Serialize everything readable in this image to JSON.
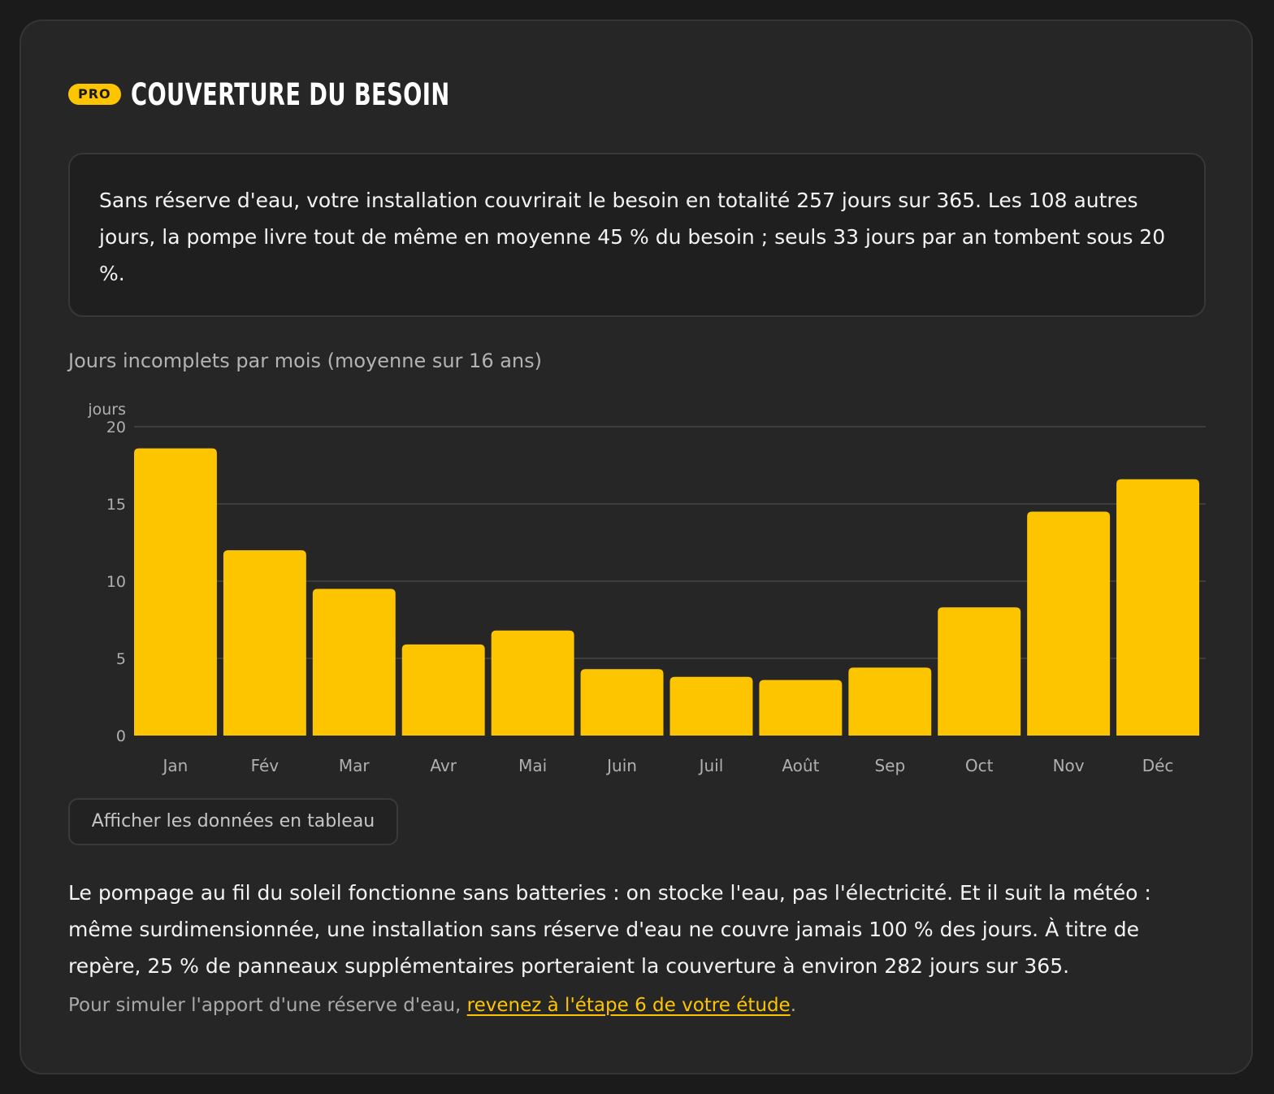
{
  "header": {
    "badge": "PRO",
    "title": "COUVERTURE DU BESOIN"
  },
  "summary": {
    "text": "Sans réserve d'eau, votre installation couvrirait le besoin en totalité 257 jours sur 365. Les 108 autres jours, la pompe livre tout de même en moyenne 45 % du besoin ; seuls 33 jours par an tombent sous 20 %."
  },
  "chart_caption": "Jours incomplets par mois (moyenne sur 16 ans)",
  "chart_data": {
    "type": "bar",
    "title": "",
    "ylabel": "jours",
    "xlabel": "",
    "ylim": [
      0,
      20
    ],
    "yticks": [
      0,
      5,
      10,
      15,
      20
    ],
    "grid": true,
    "categories": [
      "Jan",
      "Fév",
      "Mar",
      "Avr",
      "Mai",
      "Juin",
      "Juil",
      "Août",
      "Sep",
      "Oct",
      "Nov",
      "Déc"
    ],
    "values": [
      18.6,
      12.0,
      9.5,
      5.9,
      6.8,
      4.3,
      3.8,
      3.6,
      4.4,
      8.3,
      14.5,
      16.6
    ],
    "color": "#fdc500"
  },
  "table_button": {
    "label": "Afficher les données en tableau"
  },
  "explanation": {
    "text": "Le pompage au fil du soleil fonctionne sans batteries : on stocke l'eau, pas l'électricité. Et il suit la météo : même surdimensionnée, une installation sans réserve d'eau ne couvre jamais 100 % des jours. À titre de repère, 25 % de panneaux supplémentaires porteraient la couverture à environ 282 jours sur 365."
  },
  "footnote": {
    "prefix": "Pour simuler l'apport d'une réserve d'eau, ",
    "link": "revenez à l'étape 6 de votre étude",
    "suffix": "."
  },
  "colors": {
    "accent": "#fdc500",
    "card_bg": "#262626",
    "page_bg": "#1b1b1b"
  }
}
